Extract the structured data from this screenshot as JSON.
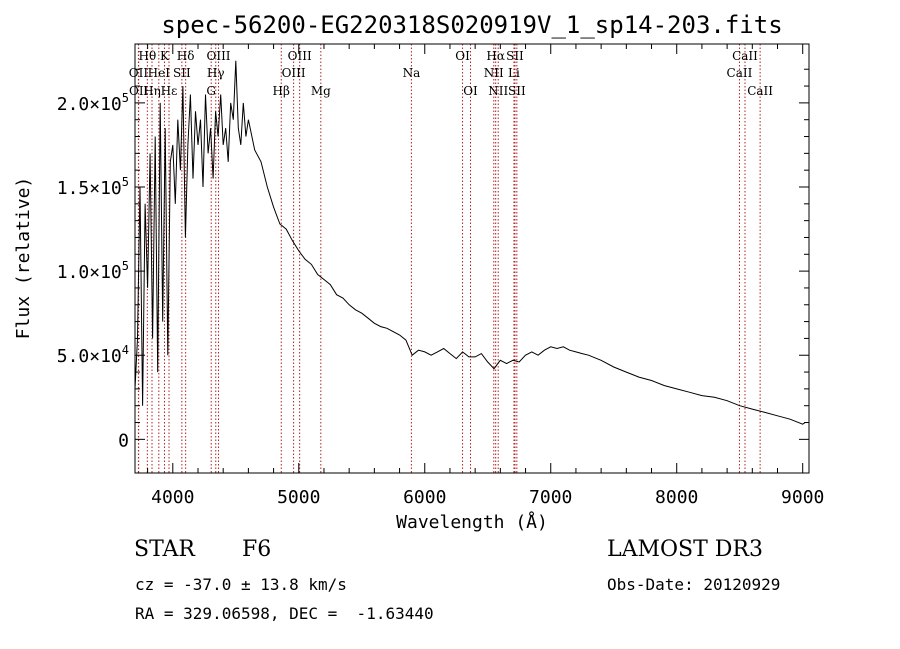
{
  "chart_data": {
    "type": "line",
    "title": "spec-56200-EG220318S020919V_1_sp14-203.fits",
    "xlabel": "Wavelength (Å)",
    "ylabel": "Flux (relative)",
    "xlim": [
      3700,
      9050
    ],
    "ylim": [
      -20000,
      235000
    ],
    "x_ticks": [
      {
        "value": 4000,
        "label": "4000"
      },
      {
        "value": 5000,
        "label": "5000"
      },
      {
        "value": 6000,
        "label": "6000"
      },
      {
        "value": 7000,
        "label": "7000"
      },
      {
        "value": 8000,
        "label": "8000"
      },
      {
        "value": 9000,
        "label": "9000"
      }
    ],
    "y_ticks": [
      {
        "value": 0,
        "mant": "0",
        "exp": ""
      },
      {
        "value": 50000,
        "mant": "5.0×10",
        "exp": "4"
      },
      {
        "value": 100000,
        "mant": "1.0×10",
        "exp": "5"
      },
      {
        "value": 150000,
        "mant": "1.5×10",
        "exp": "5"
      },
      {
        "value": 200000,
        "mant": "2.0×10",
        "exp": "5"
      }
    ],
    "series": [
      {
        "name": "spectrum",
        "x": [
          3700,
          3720,
          3740,
          3760,
          3780,
          3800,
          3820,
          3840,
          3860,
          3880,
          3900,
          3920,
          3940,
          3960,
          3980,
          4000,
          4020,
          4040,
          4060,
          4080,
          4100,
          4120,
          4140,
          4160,
          4180,
          4200,
          4220,
          4240,
          4260,
          4280,
          4300,
          4320,
          4340,
          4360,
          4380,
          4400,
          4420,
          4440,
          4460,
          4480,
          4500,
          4520,
          4540,
          4560,
          4580,
          4600,
          4650,
          4700,
          4750,
          4800,
          4850,
          4900,
          4950,
          5000,
          5050,
          5100,
          5150,
          5200,
          5250,
          5300,
          5350,
          5400,
          5450,
          5500,
          5550,
          5600,
          5650,
          5700,
          5750,
          5800,
          5850,
          5900,
          5950,
          6000,
          6050,
          6100,
          6150,
          6200,
          6250,
          6300,
          6350,
          6400,
          6450,
          6500,
          6550,
          6600,
          6650,
          6700,
          6750,
          6800,
          6850,
          6900,
          6950,
          7000,
          7050,
          7100,
          7150,
          7200,
          7250,
          7300,
          7400,
          7500,
          7600,
          7700,
          7800,
          7900,
          8000,
          8100,
          8200,
          8300,
          8400,
          8500,
          8600,
          8700,
          8800,
          8900,
          9000,
          9020
        ],
        "y": [
          30000,
          60000,
          150000,
          20000,
          140000,
          90000,
          170000,
          60000,
          180000,
          40000,
          200000,
          70000,
          185000,
          50000,
          165000,
          175000,
          140000,
          190000,
          160000,
          210000,
          120000,
          175000,
          205000,
          155000,
          195000,
          175000,
          190000,
          150000,
          205000,
          170000,
          185000,
          155000,
          195000,
          180000,
          205000,
          175000,
          185000,
          165000,
          200000,
          190000,
          225000,
          185000,
          175000,
          200000,
          180000,
          190000,
          172000,
          165000,
          150000,
          138000,
          128000,
          125000,
          118000,
          112000,
          107000,
          104000,
          98000,
          95000,
          92000,
          86000,
          84000,
          80000,
          77000,
          75000,
          72000,
          69000,
          67000,
          66000,
          64000,
          62000,
          59000,
          50000,
          53000,
          52000,
          50000,
          52000,
          54000,
          51000,
          48000,
          52000,
          49000,
          49000,
          51000,
          46000,
          42000,
          47000,
          45000,
          47000,
          46000,
          50000,
          52000,
          50000,
          53000,
          55000,
          54000,
          55000,
          53000,
          52000,
          51000,
          50000,
          47000,
          43000,
          40000,
          37000,
          35000,
          32000,
          30000,
          28000,
          26000,
          25000,
          23000,
          20000,
          18000,
          16000,
          14000,
          12000,
          9000,
          10000
        ]
      }
    ],
    "spectral_lines": [
      {
        "label": "Hθ",
        "x": 3798,
        "row": 0
      },
      {
        "label": "OII",
        "x": 3727,
        "row": 1
      },
      {
        "label": "OII",
        "x": 3729,
        "row": 2
      },
      {
        "label": "Hη",
        "x": 3835,
        "row": 2
      },
      {
        "label": "HeI",
        "x": 3889,
        "row": 1
      },
      {
        "label": "Hε",
        "x": 3970,
        "row": 2
      },
      {
        "label": "K",
        "x": 3934,
        "row": 0
      },
      {
        "label": "SII",
        "x": 4072,
        "row": 1
      },
      {
        "label": "Hδ",
        "x": 4102,
        "row": 0
      },
      {
        "label": "OIII",
        "x": 4363,
        "row": 0
      },
      {
        "label": "Hγ",
        "x": 4341,
        "row": 1
      },
      {
        "label": "G",
        "x": 4305,
        "row": 2
      },
      {
        "label": "Hβ",
        "x": 4861,
        "row": 2
      },
      {
        "label": "OIII",
        "x": 5007,
        "row": 0
      },
      {
        "label": "OIII",
        "x": 4959,
        "row": 1
      },
      {
        "label": "Mg",
        "x": 5175,
        "row": 2
      },
      {
        "label": "Na",
        "x": 5894,
        "row": 1
      },
      {
        "label": "OI",
        "x": 6300,
        "row": 0
      },
      {
        "label": "OI",
        "x": 6363,
        "row": 2
      },
      {
        "label": "Hα",
        "x": 6563,
        "row": 0
      },
      {
        "label": "NII",
        "x": 6548,
        "row": 1
      },
      {
        "label": "NII",
        "x": 6583,
        "row": 2
      },
      {
        "label": "SII",
        "x": 6716,
        "row": 0
      },
      {
        "label": "Li",
        "x": 6708,
        "row": 1
      },
      {
        "label": "SII",
        "x": 6731,
        "row": 2
      },
      {
        "label": "CaII",
        "x": 8542,
        "row": 0
      },
      {
        "label": "CaII",
        "x": 8498,
        "row": 1
      },
      {
        "label": "CaII",
        "x": 8662,
        "row": 2
      }
    ],
    "line_color": "#b22222",
    "series_color": "#000000",
    "grid": false,
    "legend": "none"
  },
  "info": {
    "object_class": "STAR",
    "subclass": "F6",
    "survey": "LAMOST DR3",
    "cz": "cz = -37.0 ± 13.8 km/s",
    "obs_date": "Obs-Date: 20120929",
    "coords": "RA = 329.06598, DEC =  -1.63440"
  }
}
